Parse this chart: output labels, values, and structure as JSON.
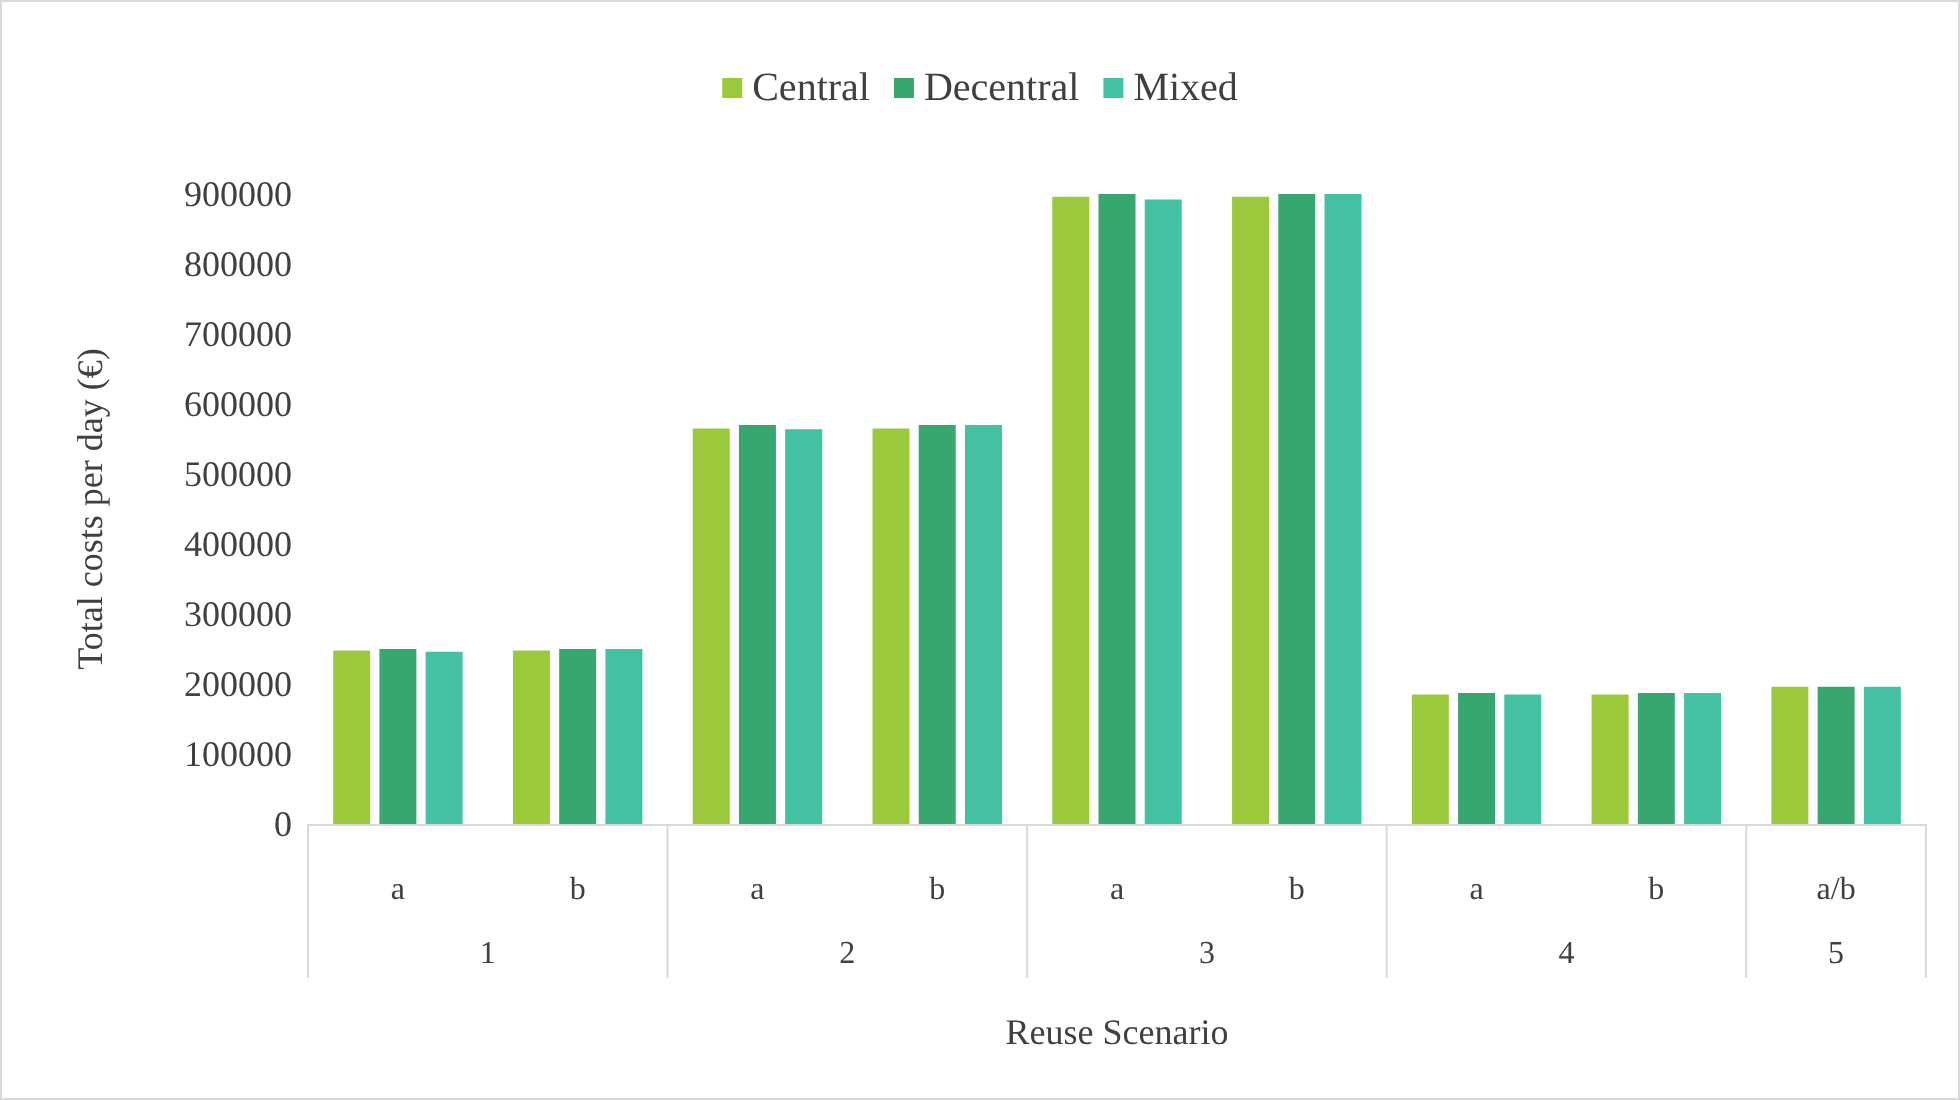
{
  "chart_data": {
    "type": "bar",
    "xlabel": "Reuse Scenario",
    "ylabel": "Total costs per day (€)",
    "categories": [
      "a",
      "b",
      "a",
      "b",
      "a",
      "b",
      "a",
      "b",
      "a/b"
    ],
    "annotations": [
      "1",
      "2",
      "3",
      "4",
      "5"
    ],
    "series": [
      {
        "name": "Central",
        "color": "#9aca3c",
        "values": [
          248000,
          248000,
          565000,
          565000,
          896000,
          896000,
          185000,
          185000,
          196000
        ]
      },
      {
        "name": "Decentral",
        "color": "#37a76f",
        "values": [
          250000,
          250000,
          570000,
          570000,
          900000,
          900000,
          187000,
          187000,
          196000
        ]
      },
      {
        "name": "Mixed",
        "color": "#44c1a3",
        "values": [
          246000,
          250000,
          564000,
          570000,
          892000,
          900000,
          185000,
          187000,
          196000
        ]
      }
    ],
    "ylim": [
      0,
      900000
    ],
    "yticks": [
      0,
      100000,
      200000,
      300000,
      400000,
      500000,
      600000,
      700000,
      800000,
      900000
    ],
    "grid": false,
    "legend": "top"
  }
}
